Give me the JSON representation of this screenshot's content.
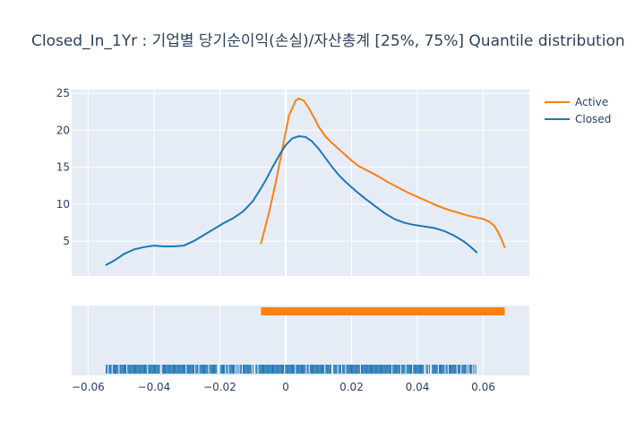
{
  "chart_data": {
    "type": "line",
    "title": "Closed_In_1Yr : 기업별 당기순이익(손실)/자산총계 [25%, 75%] Quantile distribution",
    "xlabel": "",
    "ylabel": "",
    "xlim": [
      -0.065,
      0.074
    ],
    "ylim": [
      0.3,
      25.5
    ],
    "x_ticks": [
      -0.06,
      -0.04,
      -0.02,
      0,
      0.02,
      0.04,
      0.06
    ],
    "x_tick_labels": [
      "−0.06",
      "−0.04",
      "−0.02",
      "0",
      "0.02",
      "0.04",
      "0.06"
    ],
    "y_ticks": [
      5,
      10,
      15,
      20,
      25
    ],
    "y_tick_labels": [
      "5",
      "10",
      "15",
      "20",
      "25"
    ],
    "grid": true,
    "legend": "top-right",
    "series": [
      {
        "name": "Active",
        "color": "#ff7f0e",
        "x": [
          -0.0075,
          -0.005,
          -0.003,
          -0.001,
          0.001,
          0.003,
          0.004,
          0.0055,
          0.007,
          0.0085,
          0.01,
          0.012,
          0.014,
          0.016,
          0.018,
          0.02,
          0.022,
          0.025,
          0.028,
          0.031,
          0.034,
          0.037,
          0.04,
          0.043,
          0.046,
          0.049,
          0.052,
          0.055,
          0.058,
          0.06,
          0.062,
          0.0635,
          0.065,
          0.0665
        ],
        "y": [
          4.7,
          9.0,
          13.0,
          17.5,
          22.0,
          24.0,
          24.3,
          24.0,
          23.0,
          21.8,
          20.5,
          19.2,
          18.3,
          17.5,
          16.7,
          15.9,
          15.2,
          14.5,
          13.8,
          13.0,
          12.3,
          11.6,
          11.0,
          10.4,
          9.8,
          9.3,
          8.9,
          8.5,
          8.2,
          8.0,
          7.6,
          7.0,
          5.8,
          4.2
        ]
      },
      {
        "name": "Closed",
        "color": "#1f77b4",
        "x": [
          -0.0545,
          -0.052,
          -0.049,
          -0.046,
          -0.043,
          -0.04,
          -0.037,
          -0.034,
          -0.031,
          -0.028,
          -0.025,
          -0.022,
          -0.019,
          -0.016,
          -0.013,
          -0.01,
          -0.008,
          -0.006,
          -0.004,
          -0.002,
          0,
          0.002,
          0.004,
          0.006,
          0.008,
          0.01,
          0.012,
          0.014,
          0.016,
          0.018,
          0.021,
          0.024,
          0.027,
          0.03,
          0.033,
          0.036,
          0.039,
          0.042,
          0.045,
          0.048,
          0.051,
          0.054,
          0.056,
          0.058
        ],
        "y": [
          1.8,
          2.4,
          3.3,
          3.9,
          4.2,
          4.4,
          4.3,
          4.3,
          4.4,
          5.0,
          5.8,
          6.6,
          7.4,
          8.1,
          9.0,
          10.4,
          11.8,
          13.3,
          15.0,
          16.6,
          18.0,
          18.9,
          19.2,
          19.1,
          18.5,
          17.5,
          16.3,
          15.1,
          14.0,
          13.1,
          11.9,
          10.8,
          9.8,
          8.8,
          8.0,
          7.5,
          7.2,
          7.0,
          6.8,
          6.4,
          5.8,
          5.0,
          4.3,
          3.5
        ]
      }
    ],
    "rug": [
      {
        "name": "Active",
        "color": "#ff7f0e",
        "range": [
          -0.0075,
          0.0665
        ]
      },
      {
        "name": "Closed",
        "color": "#1f77b4",
        "range": [
          -0.0545,
          0.058
        ]
      }
    ]
  }
}
